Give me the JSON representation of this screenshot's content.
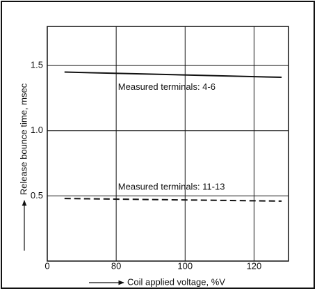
{
  "chart_data": {
    "type": "line",
    "x": [
      65,
      128
    ],
    "series": [
      {
        "name": "Measured terminals: 4-6",
        "color": "#111111",
        "dash": false,
        "values": [
          1.45,
          1.41
        ]
      },
      {
        "name": "Measured terminals: 11-13",
        "color": "#111111",
        "dash": true,
        "values": [
          0.48,
          0.46
        ]
      }
    ],
    "xlabel": "Coil applied voltage, %V",
    "ylabel": "Release bounce time, msec",
    "xlim": [
      60,
      130
    ],
    "xticks": [
      {
        "value": 60,
        "label": "0"
      },
      80,
      100,
      120
    ],
    "ylim": [
      0,
      1.8
    ],
    "yticks": [
      0.5,
      {
        "value": 1,
        "label": "1.0"
      },
      1.5
    ],
    "grid": true
  }
}
